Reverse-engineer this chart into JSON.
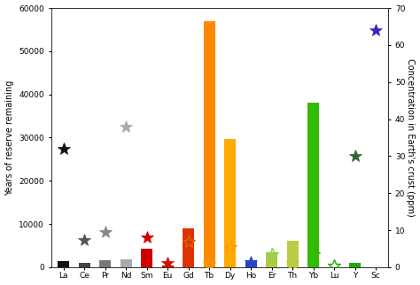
{
  "elements": [
    "La",
    "Ce",
    "Pr",
    "Nd",
    "Sm",
    "Eu",
    "Gd",
    "Tb",
    "Dy",
    "Ho",
    "Er",
    "Th",
    "Yb",
    "Lu",
    "Y",
    "Sc"
  ],
  "bar_values": [
    1400,
    900,
    1700,
    1900,
    4200,
    400,
    9000,
    57000,
    29700,
    1700,
    3400,
    6200,
    38000,
    50,
    900,
    0
  ],
  "bar_colors": [
    "#111111",
    "#444444",
    "#777777",
    "#aaaaaa",
    "#cc0000",
    "#bb1100",
    "#dd3300",
    "#ff8800",
    "#ffaa00",
    "#2244cc",
    "#aacc44",
    "#bbcc44",
    "#33bb00",
    "#22aa00",
    "#22aa00",
    "#ffffff"
  ],
  "star_values": [
    32,
    7.5,
    9.5,
    38,
    8,
    1.2,
    7,
    1,
    5.5,
    1.5,
    3.5,
    1.2,
    3.5,
    0.5,
    30,
    64
  ],
  "star_colors": [
    "#111111",
    "#555555",
    "#888888",
    "#aaaaaa",
    "#cc0000",
    "#cc1100",
    "#dd6600",
    "#ff9900",
    "#ff9900",
    "#2244cc",
    "#99cc44",
    "#bbcc44",
    "#33bb00",
    "#22aa00",
    "#336633",
    "#4422bb"
  ],
  "star_filled": [
    true,
    true,
    true,
    true,
    true,
    true,
    false,
    false,
    false,
    true,
    false,
    false,
    false,
    false,
    true,
    true
  ],
  "ylim_left": [
    0,
    60000
  ],
  "ylim_right": [
    0,
    70
  ],
  "yticks_left": [
    0,
    10000,
    20000,
    30000,
    40000,
    50000,
    60000
  ],
  "yticks_right": [
    0,
    10,
    20,
    30,
    40,
    50,
    60,
    70
  ],
  "ylabel_left": "Years of reserve remaining",
  "ylabel_right": "Concentration in Earth's crust (ppm)",
  "background_color": "#ffffff",
  "fig_width": 4.74,
  "fig_height": 3.22,
  "dpi": 100
}
